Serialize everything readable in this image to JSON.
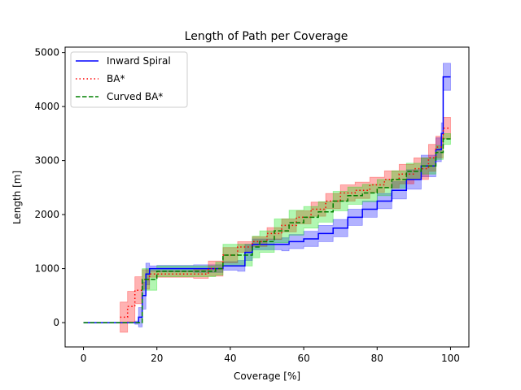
{
  "chart_data": {
    "type": "line",
    "title": "Length of Path per Coverage",
    "xlabel": "Coverage [%]",
    "ylabel": "Length [m]",
    "xlim": [
      -5,
      105
    ],
    "ylim": [
      -450,
      5100
    ],
    "xticks": [
      0,
      20,
      40,
      60,
      80,
      100
    ],
    "yticks": [
      0,
      1000,
      2000,
      3000,
      4000,
      5000
    ],
    "grid": false,
    "legend_position": "top-left",
    "series": [
      {
        "name": "Inward Spiral",
        "color": "#0000ff",
        "band_color": "#0000ff",
        "dash": "solid",
        "x": [
          0,
          14,
          15,
          16,
          17,
          18,
          20,
          30,
          38,
          42,
          44,
          46,
          50,
          54,
          56,
          60,
          64,
          68,
          72,
          76,
          80,
          84,
          88,
          92,
          96,
          97.5,
          98,
          100
        ],
        "y": [
          0,
          0,
          100,
          500,
          900,
          1000,
          1000,
          1000,
          1050,
          1050,
          1300,
          1450,
          1450,
          1450,
          1500,
          1550,
          1650,
          1750,
          1950,
          2100,
          2250,
          2450,
          2650,
          2900,
          3200,
          3500,
          4550,
          4550
        ],
        "err": [
          0,
          30,
          180,
          250,
          200,
          50,
          60,
          70,
          80,
          100,
          150,
          100,
          100,
          120,
          130,
          140,
          150,
          160,
          150,
          150,
          140,
          160,
          180,
          200,
          220,
          200,
          250,
          250
        ]
      },
      {
        "name": "BA*",
        "color": "#ff0000",
        "band_color": "#ff0000",
        "dash": "dotted",
        "x": [
          10,
          12,
          14,
          16,
          18,
          20,
          30,
          34,
          38,
          42,
          46,
          50,
          54,
          58,
          62,
          66,
          70,
          74,
          78,
          82,
          86,
          90,
          94,
          96,
          98,
          100
        ],
        "y": [
          100,
          300,
          600,
          800,
          900,
          900,
          900,
          1000,
          1250,
          1400,
          1500,
          1650,
          1800,
          1950,
          2100,
          2250,
          2400,
          2450,
          2550,
          2650,
          2750,
          2850,
          3050,
          3250,
          3600,
          3600
        ],
        "err": [
          280,
          280,
          250,
          180,
          60,
          60,
          80,
          140,
          140,
          100,
          90,
          110,
          120,
          120,
          130,
          140,
          150,
          150,
          140,
          160,
          180,
          200,
          250,
          200,
          200,
          200
        ]
      },
      {
        "name": "Curved BA*",
        "color": "#008000",
        "band_color": "#00e000",
        "dash": "dashed",
        "x": [
          0,
          12,
          16,
          17,
          18,
          19,
          20,
          30,
          36,
          38,
          42,
          46,
          48,
          52,
          56,
          60,
          64,
          68,
          72,
          76,
          80,
          84,
          88,
          92,
          96,
          98,
          100
        ],
        "y": [
          0,
          0,
          800,
          800,
          800,
          800,
          950,
          950,
          1000,
          1250,
          1250,
          1400,
          1500,
          1700,
          1850,
          1950,
          2050,
          2250,
          2350,
          2400,
          2500,
          2650,
          2800,
          2900,
          3150,
          3400,
          3400
        ],
        "err": [
          0,
          0,
          200,
          200,
          200,
          200,
          100,
          100,
          120,
          200,
          200,
          200,
          200,
          220,
          230,
          200,
          190,
          180,
          160,
          160,
          150,
          160,
          150,
          150,
          130,
          100,
          100
        ]
      }
    ]
  }
}
